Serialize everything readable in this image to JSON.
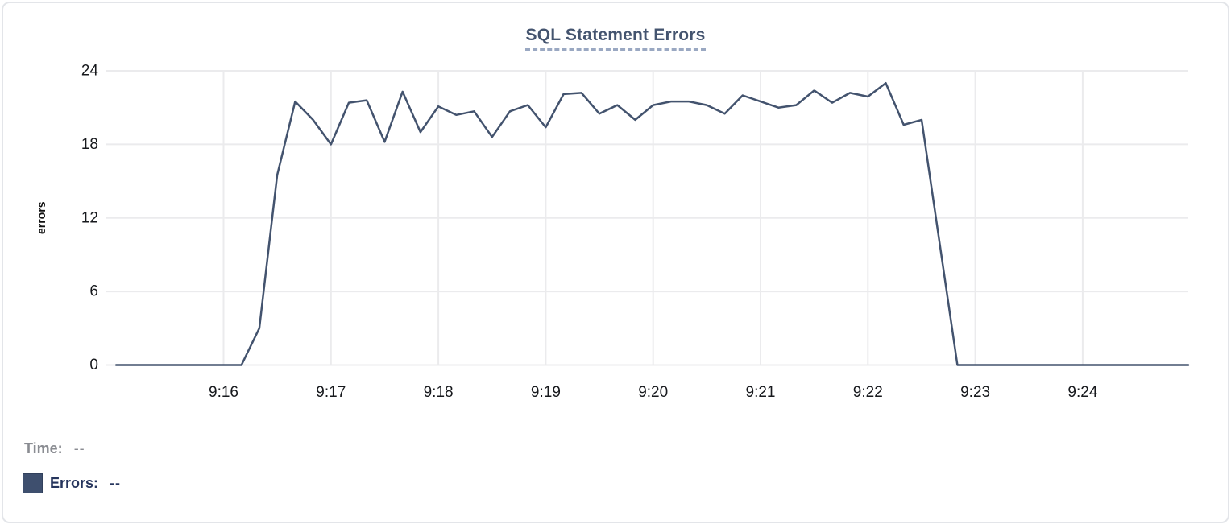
{
  "chart": {
    "title": "SQL Statement Errors",
    "y_axis_label": "errors",
    "line_color": "#43536e",
    "grid_color": "#ebebed",
    "tick_text_color": "#17191d"
  },
  "tooltip": {
    "time_label": "Time:",
    "time_value": "--",
    "errors_label": "Errors:",
    "errors_value": "--",
    "swatch_color": "#3e4f6e"
  },
  "chart_data": {
    "type": "line",
    "title": "SQL Statement Errors",
    "xlabel": "",
    "ylabel": "errors",
    "ylim": [
      0,
      24
    ],
    "y_ticks": [
      0,
      6,
      12,
      18,
      24
    ],
    "x_tick_labels": [
      "9:16",
      "9:17",
      "9:18",
      "9:19",
      "9:20",
      "9:21",
      "9:22",
      "9:23",
      "9:24"
    ],
    "x_start_time": "9:15:00",
    "x_end_time": "9:25:00",
    "x_interval_seconds": 10,
    "grid": true,
    "legend_position": "bottom-left",
    "series": [
      {
        "name": "Errors",
        "values": [
          0,
          0,
          0,
          0,
          0,
          0,
          0,
          0,
          3,
          15.5,
          21.5,
          20,
          18,
          21.4,
          21.6,
          18.2,
          22.3,
          19,
          21.1,
          20.4,
          20.7,
          18.6,
          20.7,
          21.2,
          19.4,
          22.1,
          22.2,
          20.5,
          21.2,
          20,
          21.2,
          21.5,
          21.5,
          21.2,
          20.5,
          22,
          21.5,
          21,
          21.2,
          22.4,
          21.4,
          22.2,
          21.9,
          23,
          19.6,
          20,
          10,
          0,
          0,
          0,
          0,
          0,
          0,
          0,
          0,
          0,
          0,
          0,
          0,
          0,
          0
        ]
      }
    ]
  }
}
